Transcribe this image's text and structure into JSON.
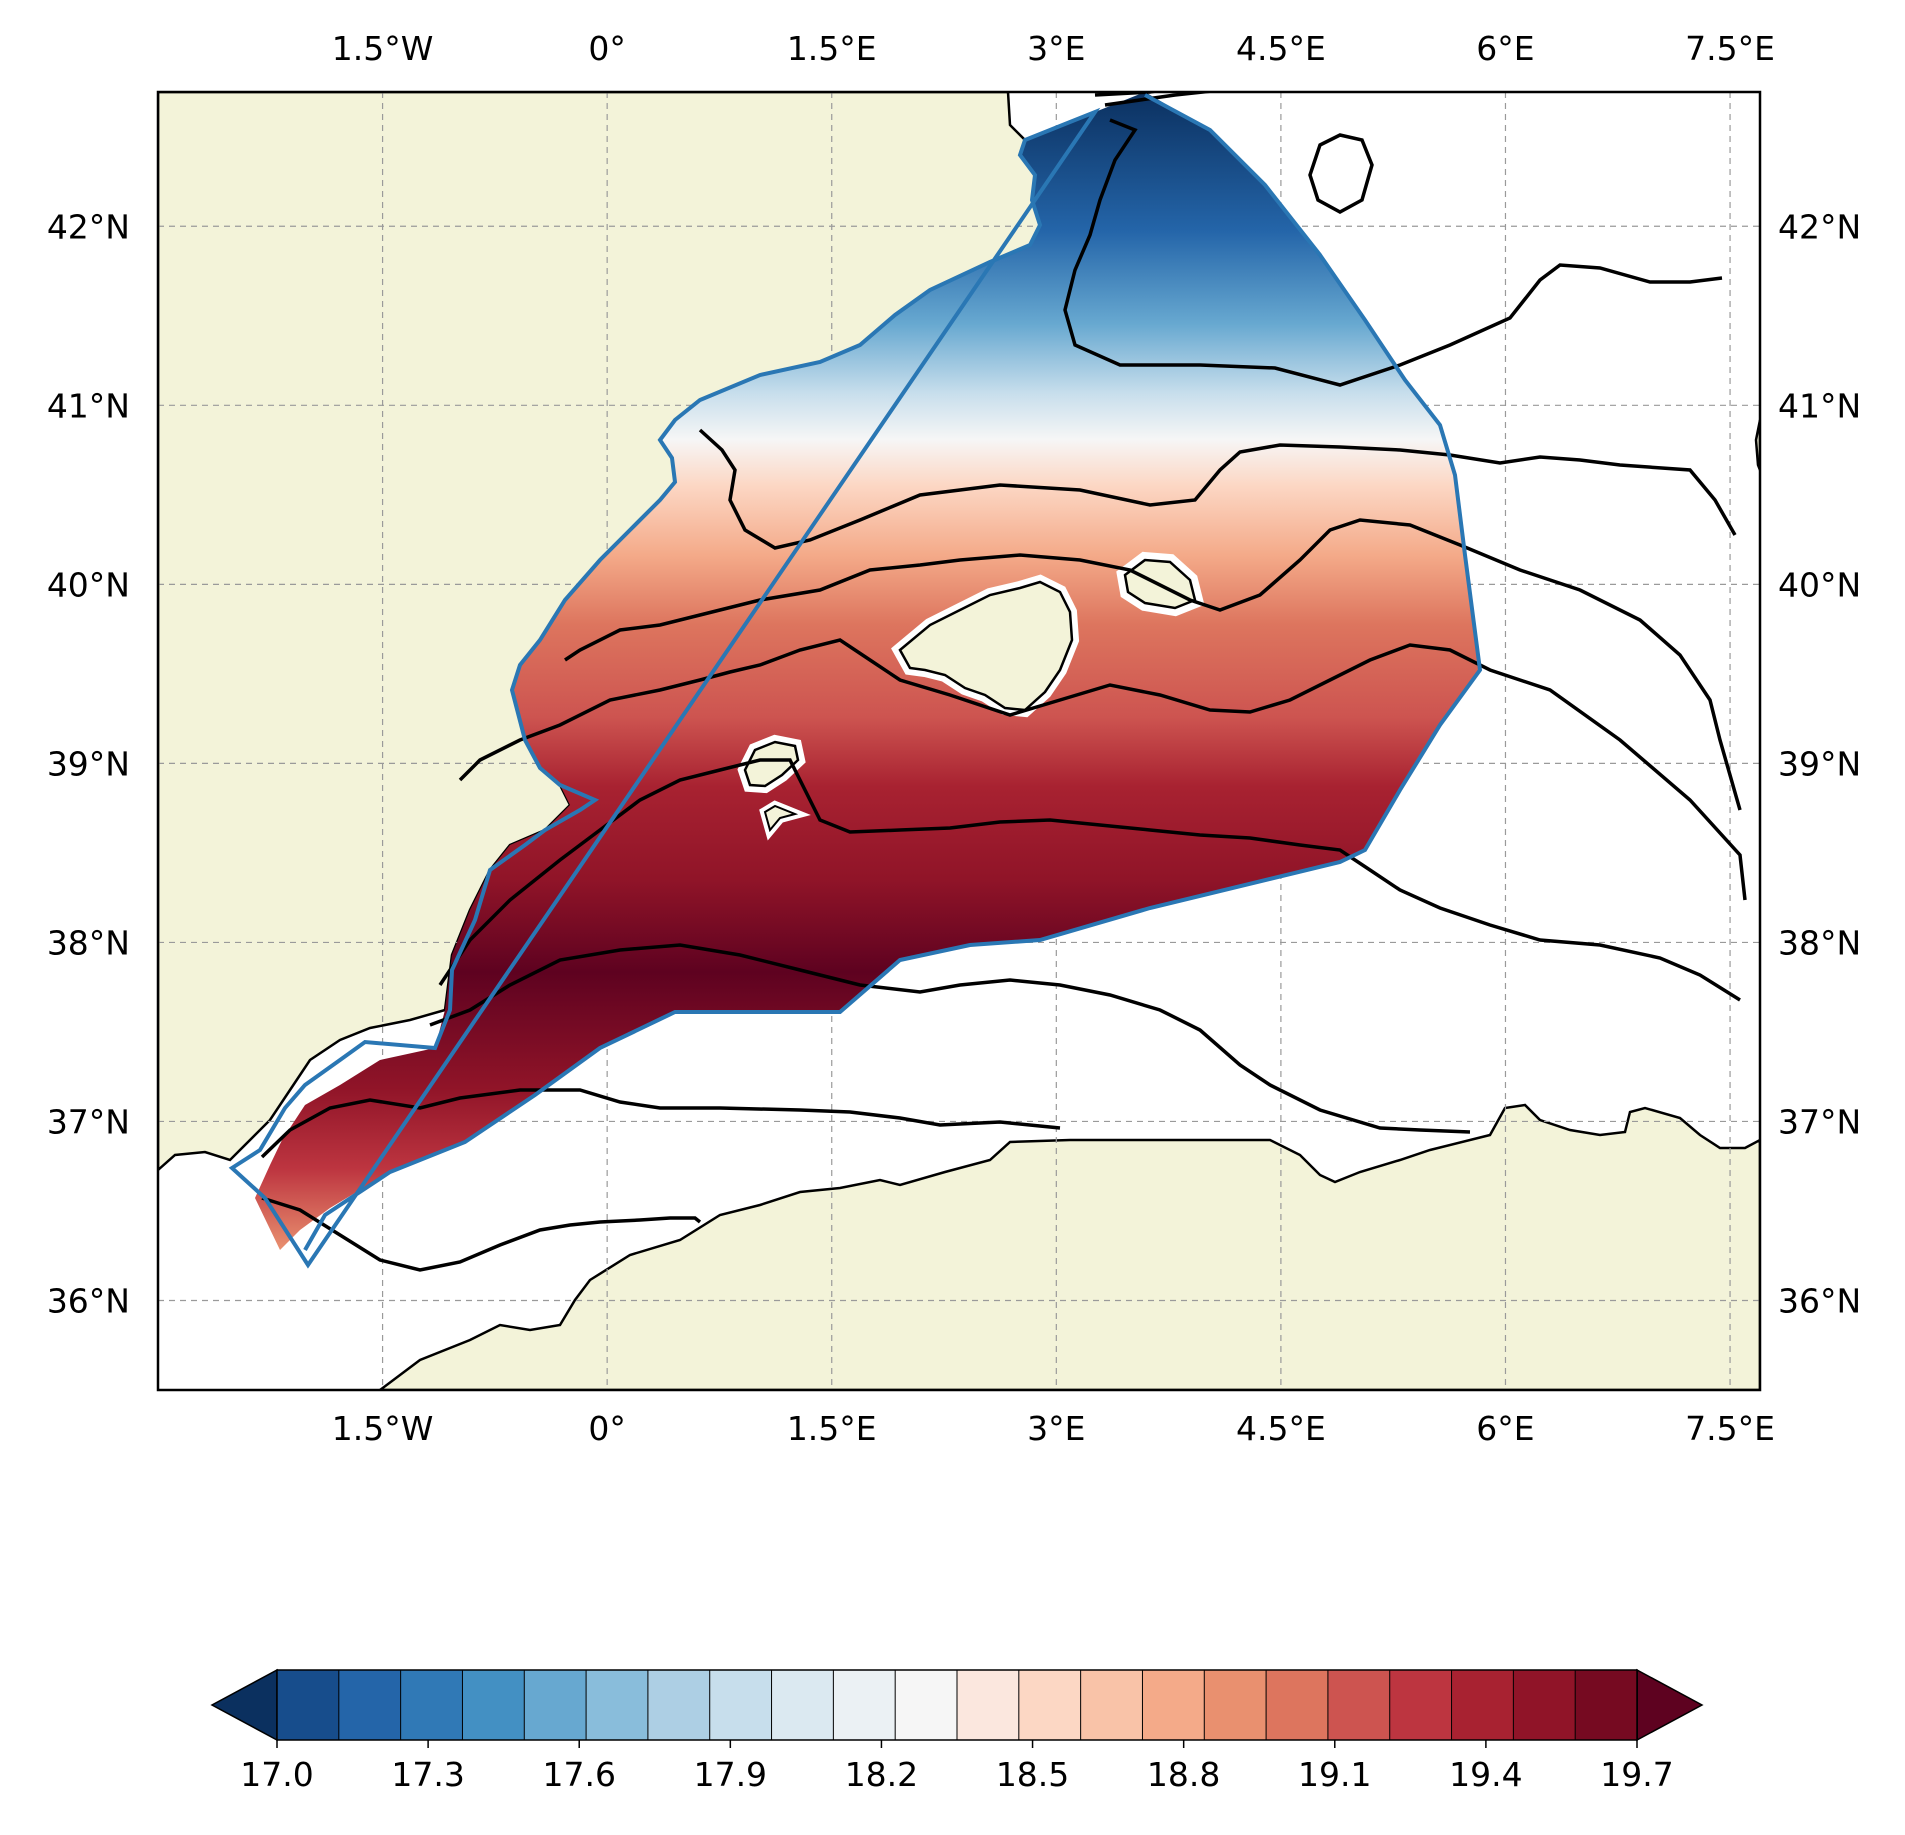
{
  "map": {
    "lon_range": [
      -3.0,
      7.7
    ],
    "lat_range": [
      35.5,
      42.75
    ],
    "lon_ticks": [
      {
        "value": -1.5,
        "label": "1.5°W"
      },
      {
        "value": 0.0,
        "label": "0°"
      },
      {
        "value": 1.5,
        "label": "1.5°E"
      },
      {
        "value": 3.0,
        "label": "3°E"
      },
      {
        "value": 4.5,
        "label": "4.5°E"
      },
      {
        "value": 6.0,
        "label": "6°E"
      },
      {
        "value": 7.5,
        "label": "7.5°E"
      }
    ],
    "lat_ticks": [
      {
        "value": 36,
        "label": "36°N"
      },
      {
        "value": 37,
        "label": "37°N"
      },
      {
        "value": 38,
        "label": "38°N"
      },
      {
        "value": 39,
        "label": "39°N"
      },
      {
        "value": 40,
        "label": "40°N"
      },
      {
        "value": 41,
        "label": "41°N"
      },
      {
        "value": 42,
        "label": "42°N"
      }
    ],
    "gridlines": true,
    "land_color": "#f3f3d9",
    "boundary_color": "#2a77b4"
  },
  "colorbar": {
    "tick_labels": [
      "17.0",
      "17.3",
      "17.6",
      "17.9",
      "18.2",
      "18.5",
      "18.8",
      "19.1",
      "19.4",
      "19.7"
    ],
    "levels_min": 17.0,
    "levels_max": 19.7,
    "levels_step": 0.1,
    "colors": [
      "#0b305f",
      "#174d8c",
      "#2465a9",
      "#3079b6",
      "#4390c3",
      "#67a8d0",
      "#89bddb",
      "#adcfe4",
      "#c7deec",
      "#dbe9f1",
      "#ebf1f4",
      "#f6f6f6",
      "#fbe7de",
      "#fcd7c4",
      "#f9c3a8",
      "#f4aa89",
      "#e9906f",
      "#dd755e",
      "#cd5450",
      "#bd3540",
      "#a82231",
      "#901428",
      "#760a21",
      "#5e0220"
    ]
  }
}
